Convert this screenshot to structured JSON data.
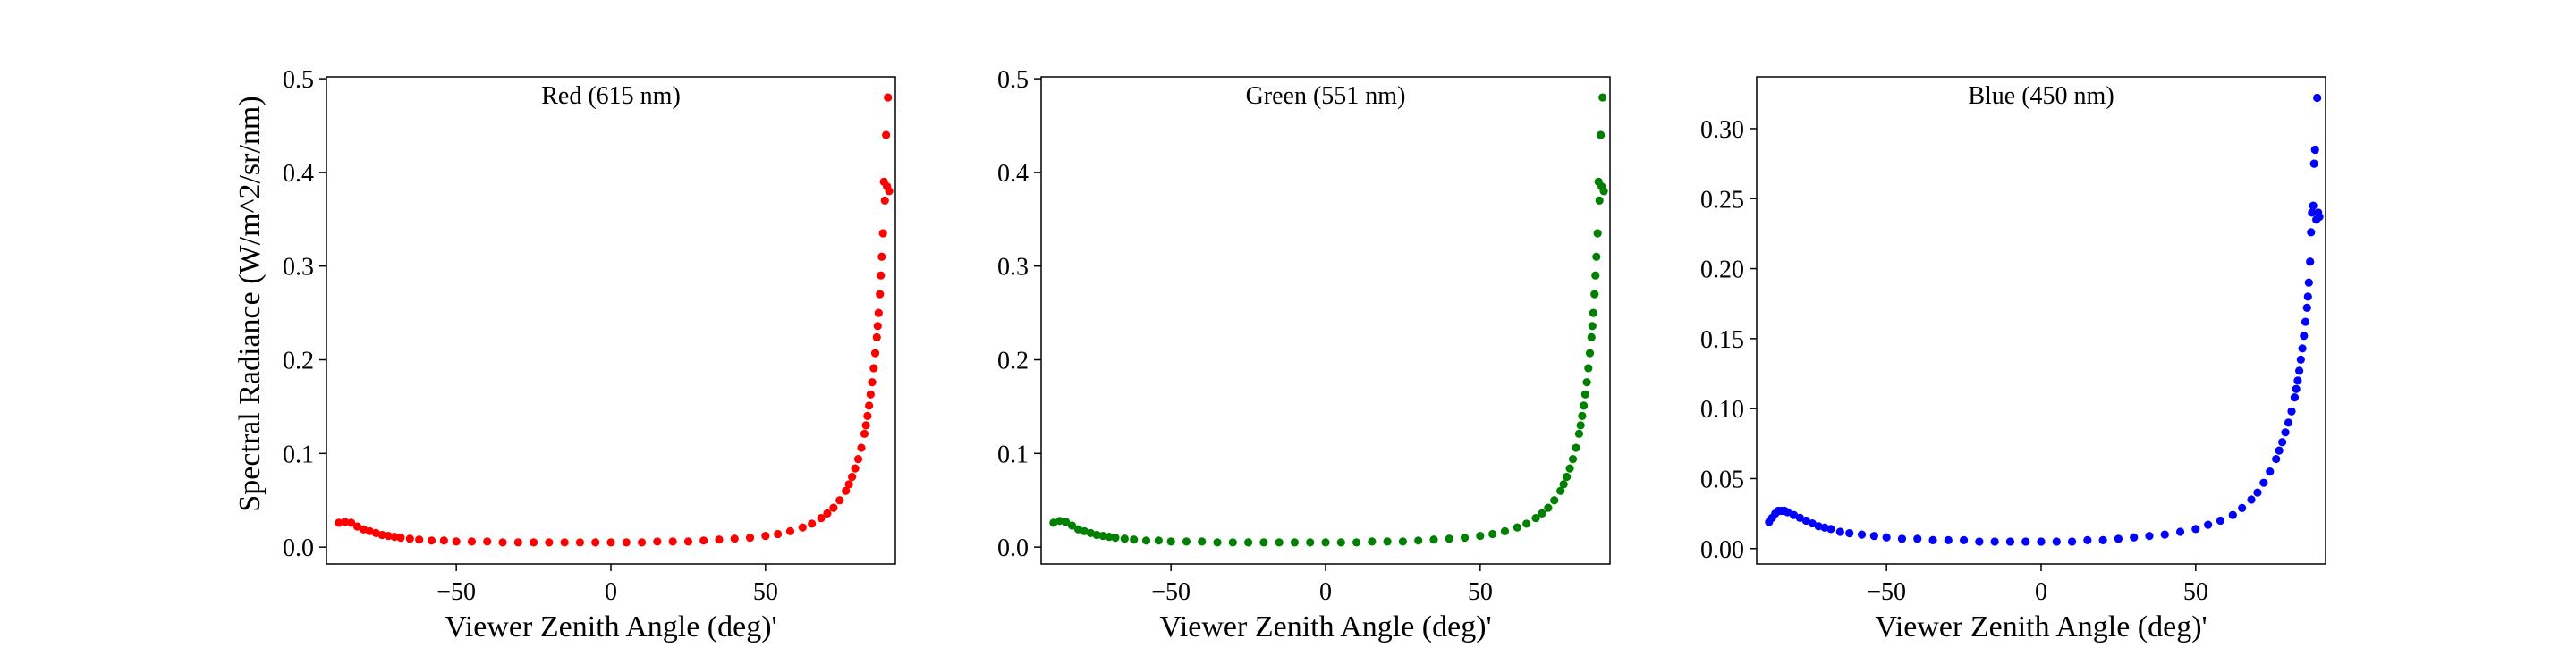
{
  "figure": {
    "colors": {
      "axes": "#000000",
      "background": "#ffffff"
    }
  },
  "chart_data": [
    {
      "type": "scatter",
      "title": "Red (615 nm)",
      "xlabel": "Viewer Zenith Angle (deg)'",
      "ylabel": "Spectral Radiance (W/m^2/sr/nm)",
      "xlim": [
        -92,
        92
      ],
      "ylim": [
        -0.018,
        0.502
      ],
      "xticks": [
        -50,
        0,
        50
      ],
      "xtick_labels": [
        "−50",
        "0",
        "50"
      ],
      "yticks": [
        0.0,
        0.1,
        0.2,
        0.3,
        0.4,
        0.5
      ],
      "ytick_labels": [
        "0.0",
        "0.1",
        "0.2",
        "0.3",
        "0.4",
        "0.5"
      ],
      "grid": false,
      "legend": "none",
      "color": "#ff0000",
      "series": [
        {
          "x": [
            -88,
            -86,
            -84,
            -82,
            -80,
            -78,
            -76,
            -74,
            -72,
            -70,
            -68,
            -65,
            -62,
            -58,
            -54,
            -50,
            -45,
            -40,
            -35,
            -30,
            -25,
            -20,
            -15,
            -10,
            -5,
            0,
            5,
            10,
            15,
            20,
            25,
            30,
            35,
            40,
            45,
            50,
            54,
            58,
            62,
            65,
            68,
            70,
            72,
            74,
            76,
            77,
            78,
            79,
            80,
            81,
            82,
            82.5,
            83,
            83.5,
            84,
            84.5,
            85,
            85.5,
            86,
            86.3,
            86.6,
            87,
            87.3,
            87.6,
            88,
            88.3,
            88.6,
            89,
            89.3,
            89.6,
            90
          ],
          "y": [
            0.026,
            0.027,
            0.026,
            0.022,
            0.019,
            0.017,
            0.015,
            0.013,
            0.012,
            0.011,
            0.01,
            0.009,
            0.008,
            0.007,
            0.007,
            0.006,
            0.006,
            0.006,
            0.005,
            0.005,
            0.005,
            0.005,
            0.005,
            0.005,
            0.005,
            0.005,
            0.005,
            0.005,
            0.006,
            0.006,
            0.006,
            0.007,
            0.008,
            0.009,
            0.01,
            0.012,
            0.014,
            0.017,
            0.021,
            0.025,
            0.031,
            0.036,
            0.042,
            0.05,
            0.06,
            0.067,
            0.075,
            0.084,
            0.094,
            0.106,
            0.121,
            0.13,
            0.14,
            0.151,
            0.163,
            0.176,
            0.191,
            0.207,
            0.224,
            0.236,
            0.25,
            0.27,
            0.29,
            0.31,
            0.335,
            0.39,
            0.37,
            0.44,
            0.385,
            0.48,
            0.38
          ]
        }
      ]
    },
    {
      "type": "scatter",
      "title": "Green (551 nm)",
      "xlabel": "Viewer Zenith Angle (deg)'",
      "ylabel": "",
      "xlim": [
        -92,
        92
      ],
      "ylim": [
        -0.018,
        0.502
      ],
      "xticks": [
        -50,
        0,
        50
      ],
      "xtick_labels": [
        "−50",
        "0",
        "50"
      ],
      "yticks": [
        0.0,
        0.1,
        0.2,
        0.3,
        0.4,
        0.5
      ],
      "ytick_labels": [
        "0.0",
        "0.1",
        "0.2",
        "0.3",
        "0.4",
        "0.5"
      ],
      "grid": false,
      "legend": "none",
      "color": "#008000",
      "series": [
        {
          "x": [
            -88,
            -86,
            -84,
            -82,
            -80,
            -78,
            -76,
            -74,
            -72,
            -70,
            -68,
            -65,
            -62,
            -58,
            -54,
            -50,
            -45,
            -40,
            -35,
            -30,
            -25,
            -20,
            -15,
            -10,
            -5,
            0,
            5,
            10,
            15,
            20,
            25,
            30,
            35,
            40,
            45,
            50,
            54,
            58,
            62,
            65,
            68,
            70,
            72,
            74,
            76,
            77,
            78,
            79,
            80,
            81,
            82,
            82.5,
            83,
            83.5,
            84,
            84.5,
            85,
            85.5,
            86,
            86.3,
            86.6,
            87,
            87.3,
            87.6,
            88,
            88.3,
            88.6,
            89,
            89.3,
            89.6,
            90
          ],
          "y": [
            0.026,
            0.028,
            0.027,
            0.023,
            0.019,
            0.017,
            0.015,
            0.013,
            0.012,
            0.011,
            0.01,
            0.009,
            0.008,
            0.007,
            0.007,
            0.006,
            0.006,
            0.006,
            0.005,
            0.005,
            0.005,
            0.005,
            0.005,
            0.005,
            0.005,
            0.005,
            0.005,
            0.005,
            0.006,
            0.006,
            0.006,
            0.007,
            0.008,
            0.009,
            0.01,
            0.012,
            0.014,
            0.017,
            0.021,
            0.025,
            0.031,
            0.036,
            0.042,
            0.05,
            0.06,
            0.067,
            0.075,
            0.084,
            0.094,
            0.106,
            0.121,
            0.13,
            0.14,
            0.151,
            0.163,
            0.176,
            0.191,
            0.207,
            0.224,
            0.236,
            0.25,
            0.27,
            0.29,
            0.31,
            0.335,
            0.39,
            0.37,
            0.44,
            0.385,
            0.48,
            0.38
          ]
        }
      ]
    },
    {
      "type": "scatter",
      "title": "Blue (450 nm)",
      "xlabel": "Viewer Zenith Angle (deg)'",
      "ylabel": "",
      "xlim": [
        -92,
        92
      ],
      "ylim": [
        -0.011,
        0.337
      ],
      "xticks": [
        -50,
        0,
        50
      ],
      "xtick_labels": [
        "−50",
        "0",
        "50"
      ],
      "yticks": [
        0.0,
        0.05,
        0.1,
        0.15,
        0.2,
        0.25,
        0.3
      ],
      "ytick_labels": [
        "0.00",
        "0.05",
        "0.10",
        "0.15",
        "0.20",
        "0.25",
        "0.30"
      ],
      "grid": false,
      "legend": "none",
      "color": "#0000ff",
      "series": [
        {
          "x": [
            -88,
            -87,
            -86,
            -85,
            -84,
            -83,
            -82,
            -80,
            -78,
            -76,
            -74,
            -72,
            -70,
            -68,
            -65,
            -62,
            -58,
            -54,
            -50,
            -45,
            -40,
            -35,
            -30,
            -25,
            -20,
            -15,
            -10,
            -5,
            0,
            5,
            10,
            15,
            20,
            25,
            30,
            35,
            40,
            45,
            50,
            54,
            58,
            62,
            65,
            68,
            70,
            72,
            74,
            76,
            77,
            78,
            79,
            80,
            81,
            82,
            82.5,
            83,
            83.5,
            84,
            84.5,
            85,
            85.5,
            86,
            86.3,
            86.6,
            87,
            87.3,
            87.6,
            88,
            88.3,
            88.6,
            89,
            89.3,
            89.6,
            90
          ],
          "y": [
            0.019,
            0.022,
            0.025,
            0.027,
            0.027,
            0.027,
            0.026,
            0.024,
            0.022,
            0.02,
            0.018,
            0.016,
            0.015,
            0.014,
            0.012,
            0.011,
            0.01,
            0.009,
            0.008,
            0.007,
            0.007,
            0.006,
            0.006,
            0.006,
            0.005,
            0.005,
            0.005,
            0.005,
            0.005,
            0.005,
            0.005,
            0.006,
            0.006,
            0.007,
            0.008,
            0.009,
            0.01,
            0.012,
            0.014,
            0.017,
            0.02,
            0.024,
            0.029,
            0.035,
            0.04,
            0.047,
            0.055,
            0.064,
            0.07,
            0.076,
            0.083,
            0.09,
            0.098,
            0.108,
            0.114,
            0.12,
            0.127,
            0.135,
            0.143,
            0.152,
            0.162,
            0.172,
            0.18,
            0.19,
            0.205,
            0.226,
            0.24,
            0.245,
            0.275,
            0.285,
            0.235,
            0.322,
            0.24,
            0.237
          ]
        }
      ]
    }
  ]
}
